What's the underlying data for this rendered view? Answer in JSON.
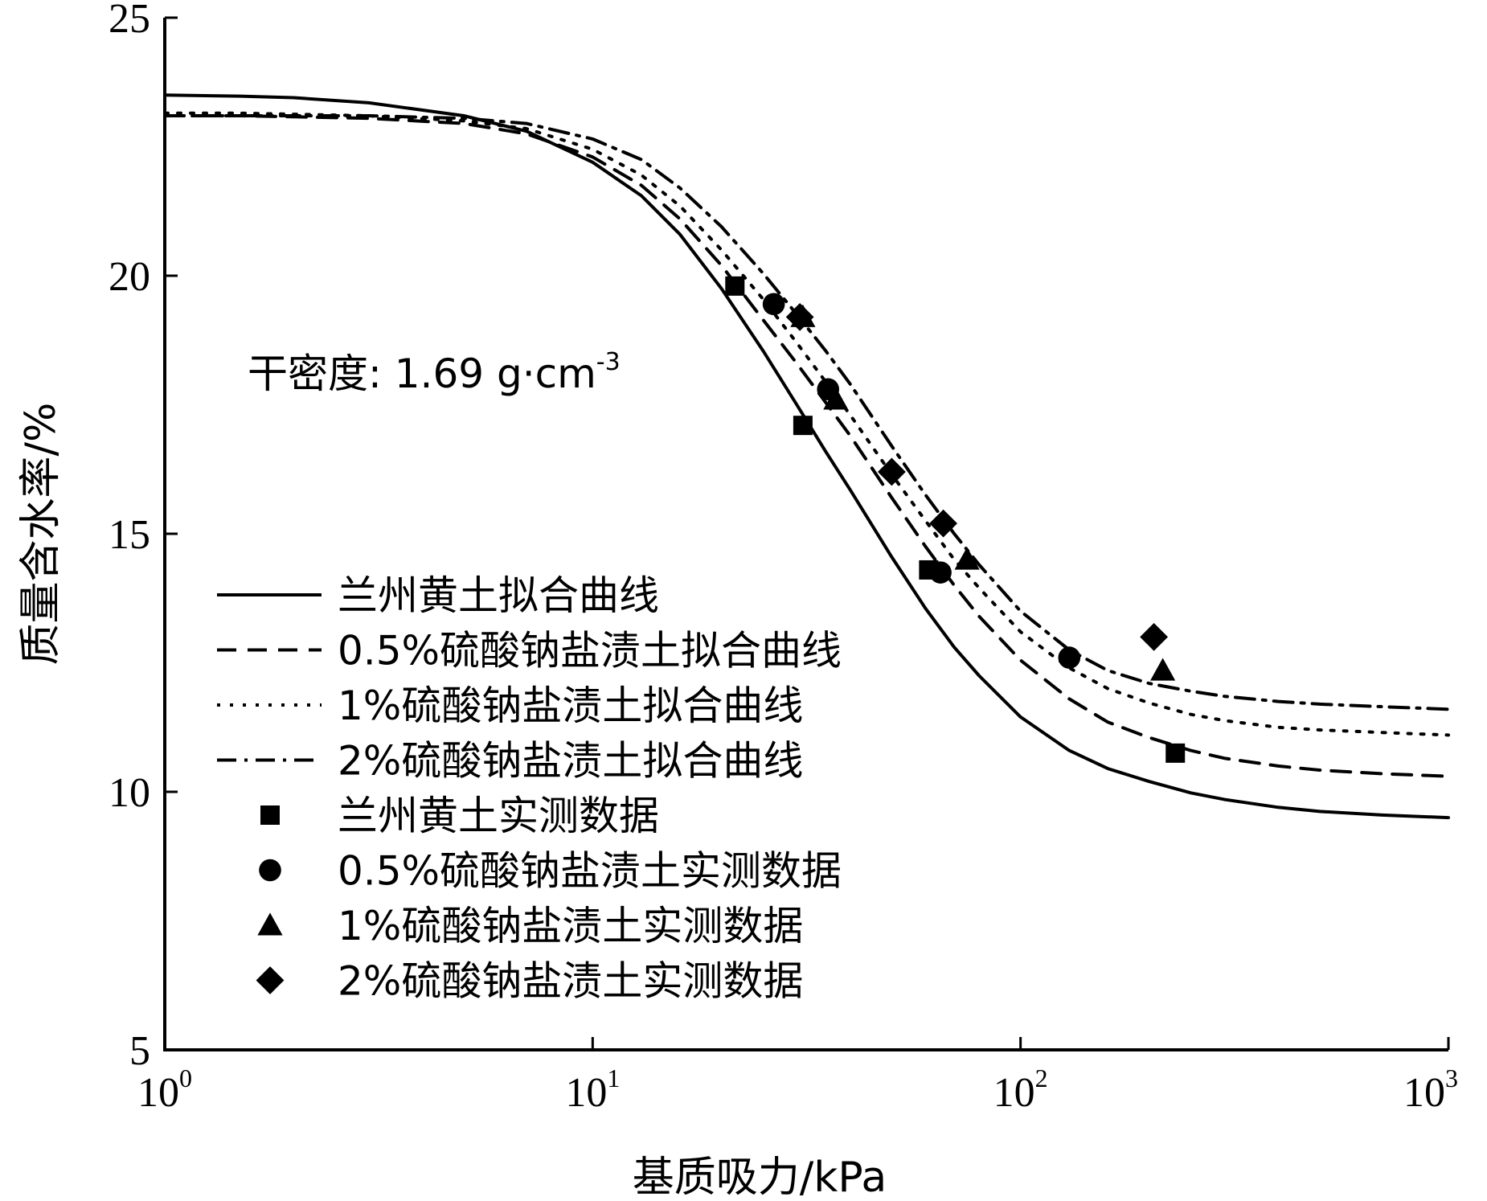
{
  "chart_data": {
    "type": "line",
    "xscale": "log",
    "xlim": [
      1,
      1000
    ],
    "ylim": [
      5,
      25
    ],
    "x_ticks": [
      {
        "value": 1,
        "base": "10",
        "exp": "0"
      },
      {
        "value": 10,
        "base": "10",
        "exp": "1"
      },
      {
        "value": 100,
        "base": "10",
        "exp": "2"
      },
      {
        "value": 1000,
        "base": "10",
        "exp": "3"
      }
    ],
    "y_ticks": [
      5,
      10,
      15,
      20,
      25
    ],
    "xlabel": "基质吸力/kPa",
    "ylabel": "质量含水率/%",
    "grid": false,
    "legend_position": "left",
    "annotation": {
      "text": "干密度: 1.69 g·cm",
      "sup": "-3"
    },
    "series": [
      {
        "name": "兰州黄土拟合曲线",
        "kind": "fit",
        "dash": "solid",
        "x": [
          1,
          1.5,
          2,
          3,
          5,
          7,
          10,
          13,
          16,
          20,
          25,
          30,
          35,
          40,
          50,
          60,
          70,
          80,
          100,
          130,
          160,
          200,
          250,
          300,
          400,
          500,
          700,
          1000
        ],
        "y": [
          23.5,
          23.48,
          23.45,
          23.35,
          23.1,
          22.8,
          22.2,
          21.55,
          20.8,
          19.75,
          18.55,
          17.5,
          16.6,
          15.85,
          14.55,
          13.55,
          12.8,
          12.25,
          11.45,
          10.8,
          10.45,
          10.2,
          9.98,
          9.85,
          9.7,
          9.62,
          9.55,
          9.5
        ]
      },
      {
        "name": "0.5%硫酸钠盐渍土拟合曲线",
        "kind": "fit",
        "dash": "dashed",
        "x": [
          1,
          1.5,
          2,
          3,
          5,
          7,
          10,
          13,
          16,
          20,
          25,
          30,
          35,
          40,
          50,
          60,
          70,
          80,
          100,
          130,
          160,
          200,
          250,
          300,
          400,
          500,
          700,
          1000
        ],
        "y": [
          23.1,
          23.1,
          23.08,
          23.05,
          22.95,
          22.75,
          22.3,
          21.75,
          21.1,
          20.2,
          19.15,
          18.3,
          17.55,
          16.9,
          15.7,
          14.75,
          14.0,
          13.4,
          12.55,
          11.8,
          11.35,
          11.05,
          10.8,
          10.65,
          10.5,
          10.42,
          10.35,
          10.3
        ]
      },
      {
        "name": "1%硫酸钠盐渍土拟合曲线",
        "kind": "fit",
        "dash": "dotted",
        "x": [
          1,
          1.5,
          2,
          3,
          5,
          7,
          10,
          13,
          16,
          20,
          25,
          30,
          35,
          40,
          50,
          60,
          70,
          80,
          100,
          130,
          160,
          200,
          250,
          300,
          400,
          500,
          700,
          1000
        ],
        "y": [
          23.15,
          23.15,
          23.13,
          23.1,
          23.0,
          22.85,
          22.45,
          21.95,
          21.35,
          20.5,
          19.55,
          18.7,
          17.95,
          17.3,
          16.15,
          15.25,
          14.5,
          13.95,
          13.1,
          12.4,
          12.0,
          11.72,
          11.5,
          11.38,
          11.25,
          11.2,
          11.15,
          11.1
        ]
      },
      {
        "name": "2%硫酸钠盐渍土拟合曲线",
        "kind": "fit",
        "dash": "dashdot",
        "x": [
          1,
          1.5,
          2,
          3,
          5,
          7,
          10,
          13,
          16,
          20,
          25,
          30,
          35,
          40,
          50,
          60,
          70,
          80,
          100,
          130,
          160,
          200,
          250,
          300,
          400,
          500,
          700,
          1000
        ],
        "y": [
          23.1,
          23.1,
          23.1,
          23.1,
          23.05,
          22.95,
          22.65,
          22.25,
          21.7,
          20.95,
          20.05,
          19.25,
          18.55,
          17.9,
          16.7,
          15.75,
          15.0,
          14.4,
          13.5,
          12.75,
          12.35,
          12.1,
          11.95,
          11.85,
          11.75,
          11.7,
          11.65,
          11.6
        ]
      },
      {
        "name": "兰州黄土实测数据",
        "kind": "points",
        "marker": "square",
        "x": [
          21.5,
          31,
          61,
          230
        ],
        "y": [
          19.8,
          17.1,
          14.3,
          10.75
        ]
      },
      {
        "name": "0.5%硫酸钠盐渍土实测数据",
        "kind": "points",
        "marker": "circle",
        "x": [
          26.5,
          35.5,
          65,
          130
        ],
        "y": [
          19.45,
          17.8,
          14.25,
          12.6
        ]
      },
      {
        "name": "1%硫酸钠盐渍土实测数据",
        "kind": "points",
        "marker": "triangle",
        "x": [
          31,
          37,
          75,
          215
        ],
        "y": [
          19.2,
          17.6,
          14.5,
          12.35
        ]
      },
      {
        "name": "2%硫酸钠盐渍土实测数据",
        "kind": "points",
        "marker": "diamond",
        "x": [
          30.5,
          50,
          66,
          205
        ],
        "y": [
          19.2,
          16.2,
          15.2,
          13.0
        ]
      }
    ]
  }
}
